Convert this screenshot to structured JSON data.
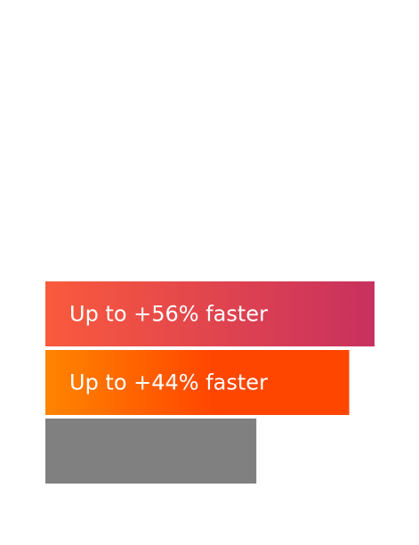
{
  "chart_data": {
    "type": "bar",
    "orientation": "horizontal",
    "grid": false,
    "bars": [
      {
        "label": "Up to +56% faster",
        "value": 1.56,
        "colors": [
          "#fa5a3c",
          "#c8305f"
        ]
      },
      {
        "label": "Up to +44% faster",
        "value": 1.44,
        "colors": [
          "#ff8500",
          "#ff4600"
        ]
      },
      {
        "label": "",
        "value": 1.0,
        "colors": [
          "#808080",
          "#808080"
        ]
      }
    ]
  }
}
